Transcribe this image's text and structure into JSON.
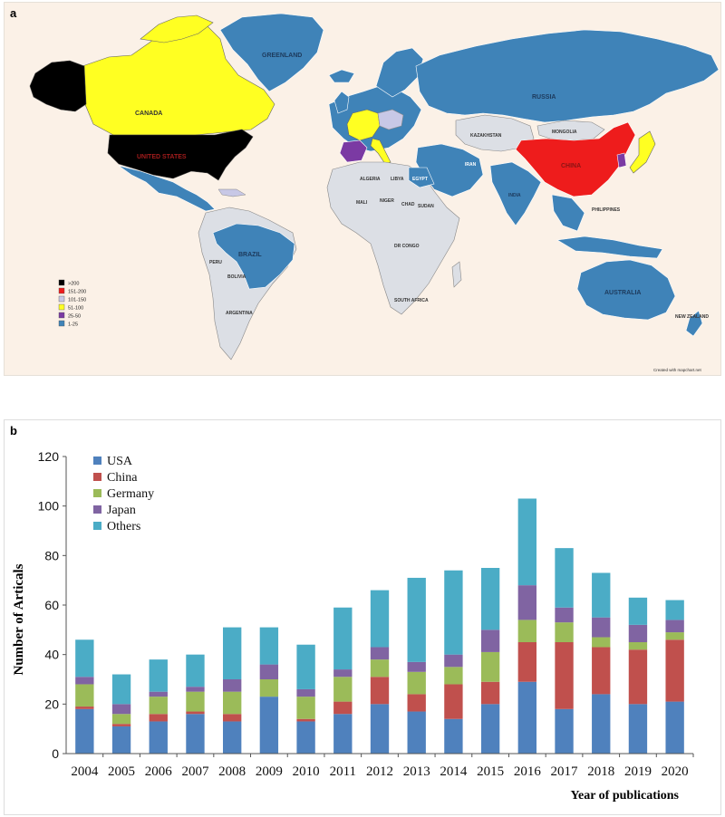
{
  "panel_a": {
    "label": "a",
    "credit": "Created with mapchart.net",
    "legend": [
      {
        "label": ">200",
        "color": "#000000"
      },
      {
        "label": "151-200",
        "color": "#ee1c1c"
      },
      {
        "label": "101-150",
        "color": "#c8c8e6"
      },
      {
        "label": "51-100",
        "color": "#ffff22"
      },
      {
        "label": "25-50",
        "color": "#7b3aa3"
      },
      {
        "label": "1-25",
        "color": "#3f83b8"
      }
    ],
    "country_labels": {
      "greenland": "GREENLAND",
      "canada": "CANADA",
      "usa": "UNITED STATES",
      "russia": "RUSSIA",
      "china": "CHINA",
      "kazakhstan": "KAZAKHSTAN",
      "mongolia": "MONGOLIA",
      "india": "INDIA",
      "brazil": "BRAZIL",
      "australia": "AUSTRALIA",
      "algeria": "ALGERIA",
      "libya": "LIBYA",
      "egypt": "EGYPT",
      "mali": "MALI",
      "niger": "NIGER",
      "sudan": "SUDAN",
      "chad": "CHAD",
      "drcongo": "DR CONGO",
      "southafrica": "SOUTH AFRICA",
      "bolivia": "BOLIVIA",
      "argentina": "ARGENTINA",
      "peru": "PERU",
      "newzealand": "NEW ZEALAND",
      "iran": "IRAN",
      "philippines": "PHILIPPINES"
    }
  },
  "panel_b": {
    "label": "b"
  },
  "colors": {
    "USA": "#4f81bd",
    "China": "#c0504d",
    "Germany": "#9bbb59",
    "Japan": "#8064a2",
    "Others": "#4bacc6"
  },
  "chart_data": {
    "type": "bar",
    "stacked": true,
    "categories": [
      "2004",
      "2005",
      "2006",
      "2007",
      "2008",
      "2009",
      "2010",
      "2011",
      "2012",
      "2013",
      "2014",
      "2015",
      "2016",
      "2017",
      "2018",
      "2019",
      "2020"
    ],
    "series": [
      {
        "name": "USA",
        "values": [
          18,
          11,
          13,
          16,
          13,
          23,
          13,
          16,
          20,
          17,
          14,
          20,
          29,
          18,
          24,
          20,
          21
        ]
      },
      {
        "name": "China",
        "values": [
          1,
          1,
          3,
          1,
          3,
          0,
          1,
          5,
          11,
          7,
          14,
          9,
          16,
          27,
          19,
          22,
          25
        ]
      },
      {
        "name": "Germany",
        "values": [
          9,
          4,
          7,
          8,
          9,
          7,
          9,
          10,
          7,
          9,
          7,
          12,
          9,
          8,
          4,
          3,
          3
        ]
      },
      {
        "name": "Japan",
        "values": [
          3,
          4,
          2,
          2,
          5,
          6,
          3,
          3,
          5,
          4,
          5,
          9,
          14,
          6,
          8,
          7,
          5
        ]
      },
      {
        "name": "Others",
        "values": [
          15,
          12,
          13,
          13,
          21,
          15,
          18,
          25,
          23,
          34,
          34,
          25,
          35,
          24,
          18,
          11,
          8
        ]
      }
    ],
    "ylabel": "Number of Articals",
    "xlabel": "Year of publications",
    "ylim": [
      0,
      120
    ],
    "yticks": [
      "0",
      "20",
      "40",
      "60",
      "80",
      "100",
      "120"
    ],
    "grid": false,
    "legend_position": "top-left"
  }
}
